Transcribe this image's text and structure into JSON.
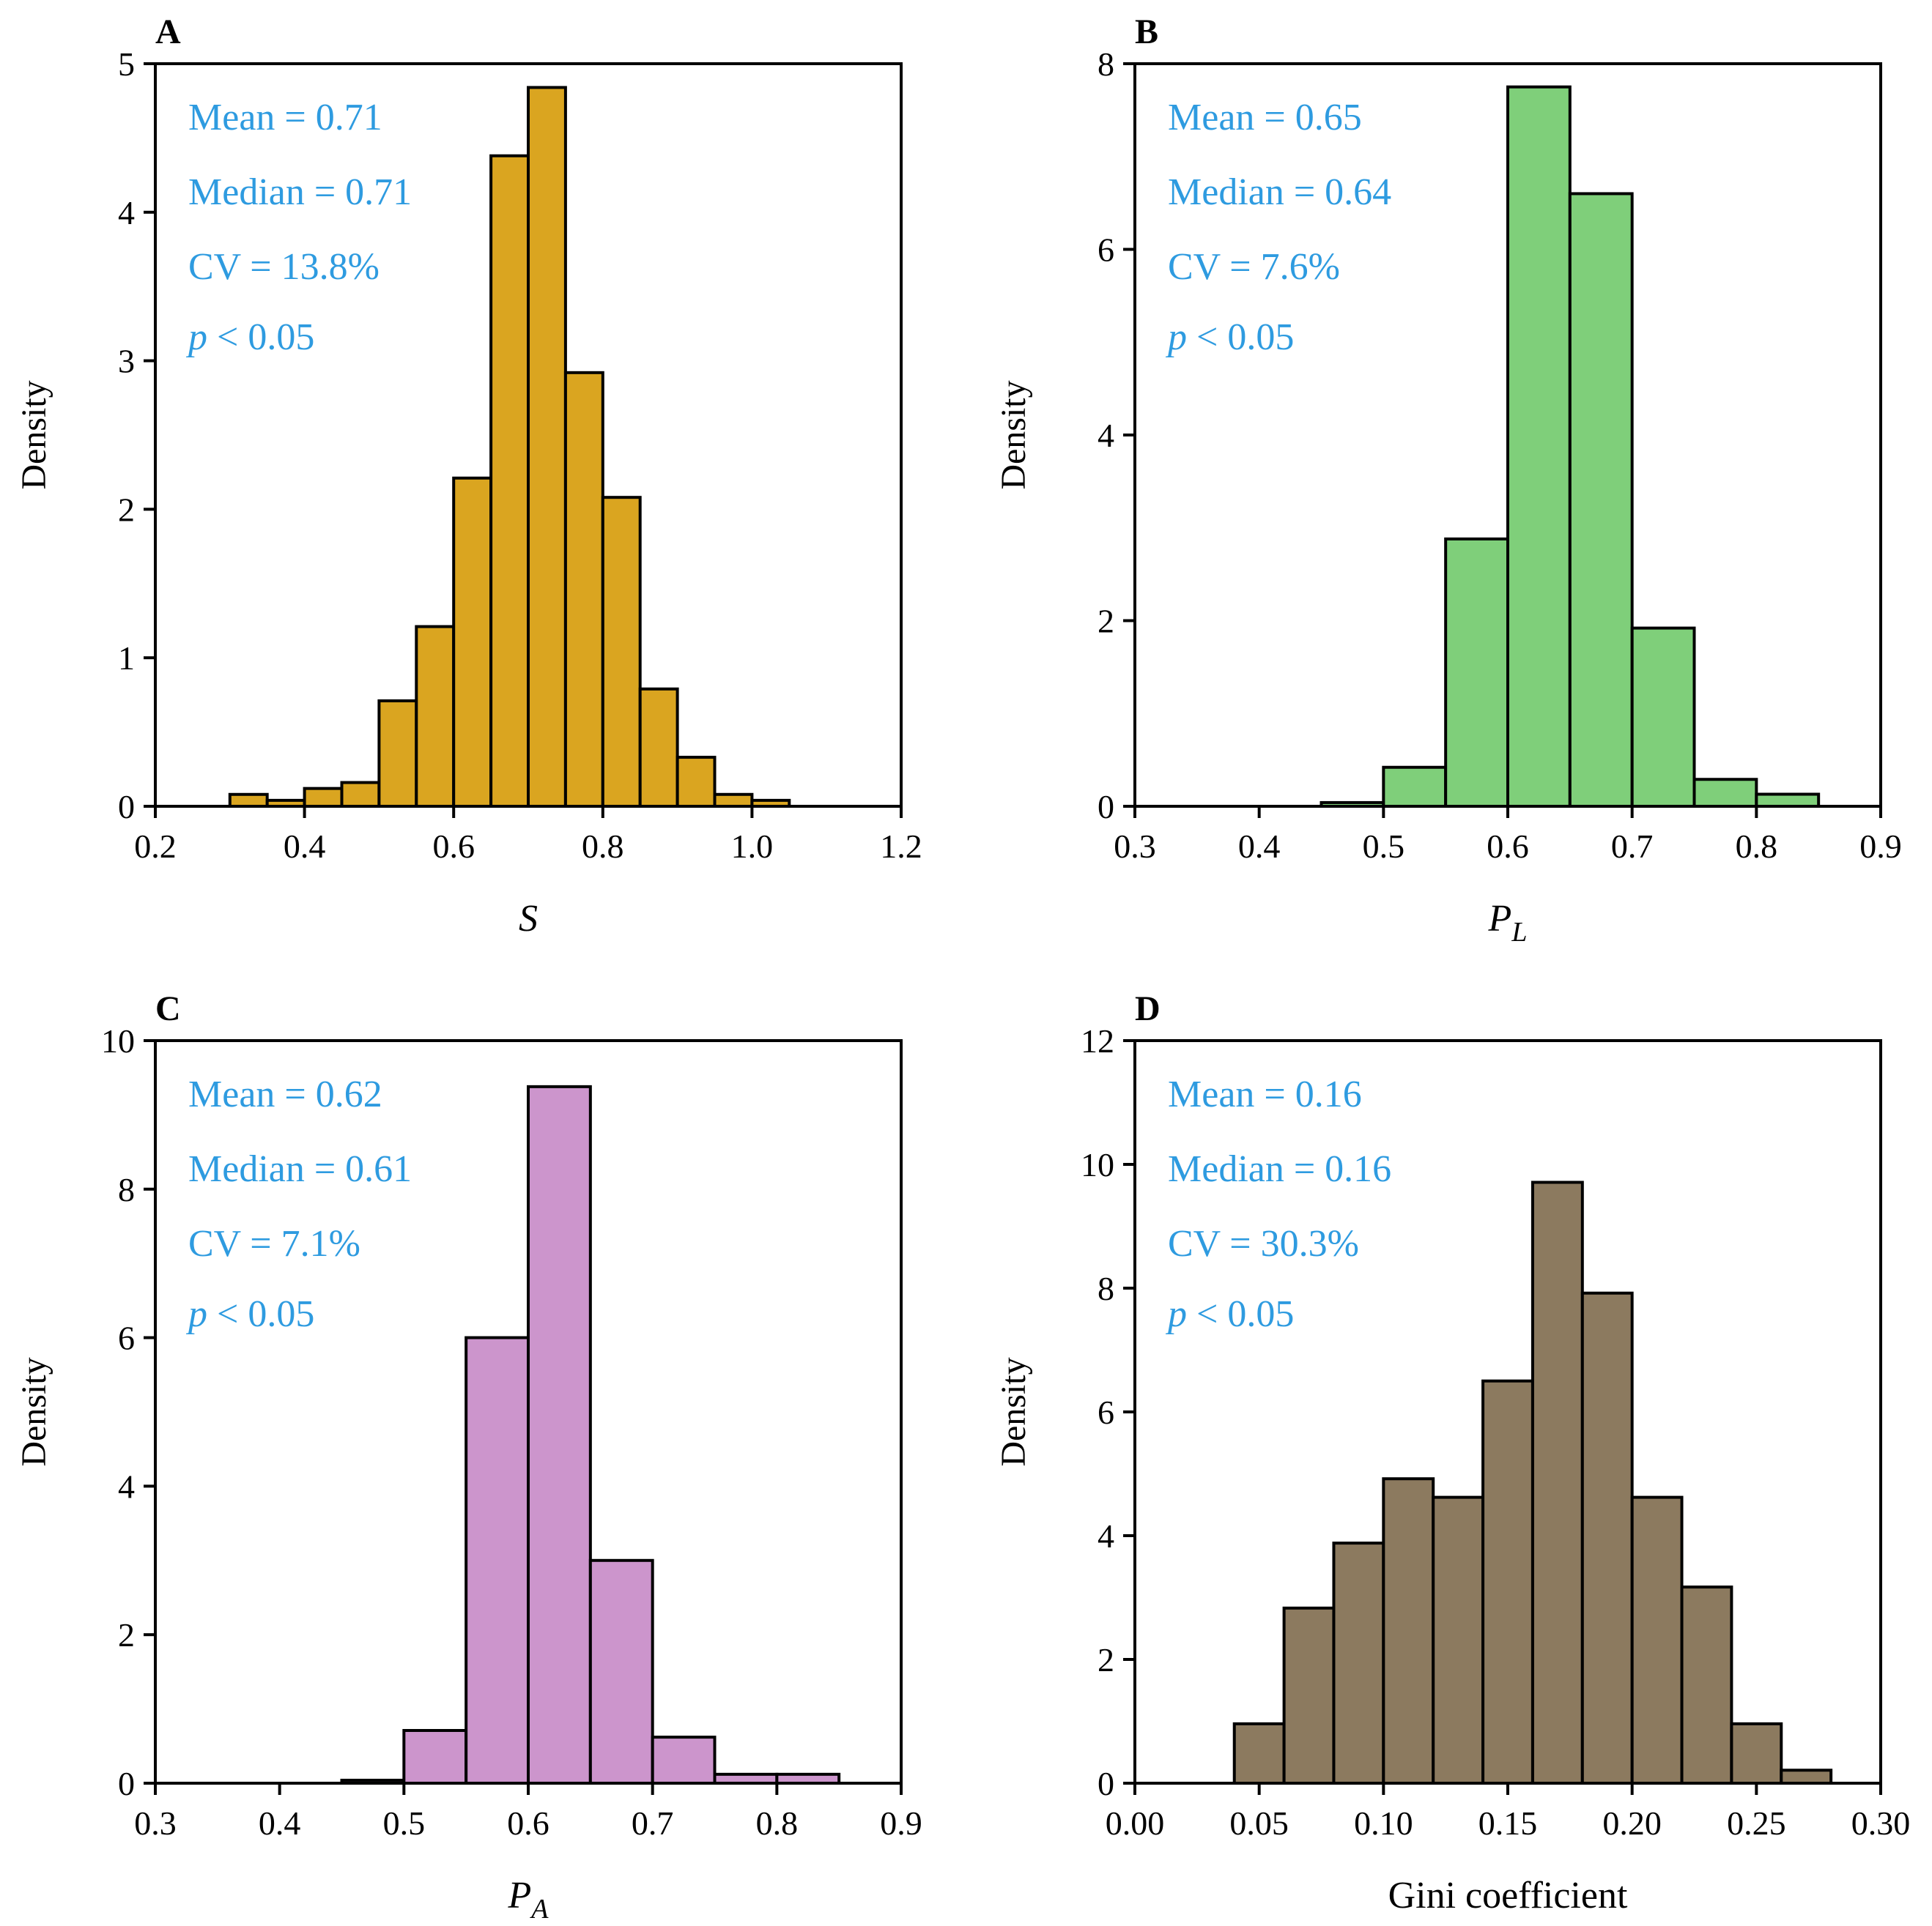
{
  "stat_color": "#2e9be0",
  "chart_data": [
    {
      "type": "histogram",
      "panel": "A",
      "xlabel": "S",
      "ylabel": "Density",
      "xlim": [
        0.2,
        1.2
      ],
      "ylim": [
        0,
        5
      ],
      "xticks": [
        "0.2",
        "0.4",
        "0.6",
        "0.8",
        "1.0",
        "1.2"
      ],
      "yticks": [
        "0",
        "1",
        "2",
        "3",
        "4",
        "5"
      ],
      "color": "#daa520",
      "bin_width": 0.05,
      "bins": [
        {
          "x0": 0.3,
          "value": 0.08
        },
        {
          "x0": 0.35,
          "value": 0.04
        },
        {
          "x0": 0.4,
          "value": 0.12
        },
        {
          "x0": 0.45,
          "value": 0.16
        },
        {
          "x0": 0.5,
          "value": 0.71
        },
        {
          "x0": 0.55,
          "value": 1.21
        },
        {
          "x0": 0.6,
          "value": 2.21
        },
        {
          "x0": 0.65,
          "value": 4.38
        },
        {
          "x0": 0.7,
          "value": 4.84
        },
        {
          "x0": 0.75,
          "value": 2.92
        },
        {
          "x0": 0.8,
          "value": 2.08
        },
        {
          "x0": 0.85,
          "value": 0.79
        },
        {
          "x0": 0.9,
          "value": 0.33
        },
        {
          "x0": 0.95,
          "value": 0.08
        },
        {
          "x0": 1.0,
          "value": 0.04
        }
      ],
      "annotations": {
        "mean": "Mean = 0.71",
        "median": "Median = 0.71",
        "cv": "CV = 13.8%",
        "p_var": "p",
        "p_rest": " < 0.05"
      }
    },
    {
      "type": "histogram",
      "panel": "B",
      "xlabel": "P",
      "xlabel_sub": "L",
      "ylabel": "Density",
      "xlim": [
        0.3,
        0.9
      ],
      "ylim": [
        0,
        8
      ],
      "xticks": [
        "0.3",
        "0.4",
        "0.5",
        "0.6",
        "0.7",
        "0.8",
        "0.9"
      ],
      "yticks": [
        "0",
        "2",
        "4",
        "6",
        "8"
      ],
      "color": "#7fcf7a",
      "bin_width": 0.05,
      "bins": [
        {
          "x0": 0.45,
          "value": 0.04
        },
        {
          "x0": 0.5,
          "value": 0.42
        },
        {
          "x0": 0.55,
          "value": 2.88
        },
        {
          "x0": 0.6,
          "value": 7.75
        },
        {
          "x0": 0.65,
          "value": 6.6
        },
        {
          "x0": 0.7,
          "value": 1.92
        },
        {
          "x0": 0.75,
          "value": 0.29
        },
        {
          "x0": 0.8,
          "value": 0.13
        }
      ],
      "annotations": {
        "mean": "Mean = 0.65",
        "median": "Median = 0.64",
        "cv": "CV = 7.6%",
        "p_var": "p",
        "p_rest": " < 0.05"
      }
    },
    {
      "type": "histogram",
      "panel": "C",
      "xlabel": "P",
      "xlabel_sub": "A",
      "ylabel": "Density",
      "xlim": [
        0.3,
        0.9
      ],
      "ylim": [
        0,
        10
      ],
      "xticks": [
        "0.3",
        "0.4",
        "0.5",
        "0.6",
        "0.7",
        "0.8",
        "0.9"
      ],
      "yticks": [
        "0",
        "2",
        "4",
        "6",
        "8",
        "10"
      ],
      "color": "#cc95cc",
      "bin_width": 0.05,
      "bins": [
        {
          "x0": 0.45,
          "value": 0.04
        },
        {
          "x0": 0.5,
          "value": 0.71
        },
        {
          "x0": 0.55,
          "value": 6.0
        },
        {
          "x0": 0.6,
          "value": 9.38
        },
        {
          "x0": 0.65,
          "value": 3.0
        },
        {
          "x0": 0.7,
          "value": 0.62
        },
        {
          "x0": 0.75,
          "value": 0.12
        },
        {
          "x0": 0.8,
          "value": 0.12
        }
      ],
      "annotations": {
        "mean": "Mean = 0.62",
        "median": "Median = 0.61",
        "cv": "CV = 7.1%",
        "p_var": "p",
        "p_rest": " < 0.05"
      }
    },
    {
      "type": "histogram",
      "panel": "D",
      "xlabel": "Gini coefficient",
      "ylabel": "Density",
      "xlim": [
        0.0,
        0.3
      ],
      "ylim": [
        0,
        12
      ],
      "xticks": [
        "0.00",
        "0.05",
        "0.10",
        "0.15",
        "0.20",
        "0.25",
        "0.30"
      ],
      "yticks": [
        "0",
        "2",
        "4",
        "6",
        "8",
        "10",
        "12"
      ],
      "color": "#8c7a5f",
      "bin_width": 0.02,
      "bins": [
        {
          "x0": 0.04,
          "value": 0.96
        },
        {
          "x0": 0.06,
          "value": 2.83
        },
        {
          "x0": 0.08,
          "value": 3.88
        },
        {
          "x0": 0.1,
          "value": 4.92
        },
        {
          "x0": 0.12,
          "value": 4.62
        },
        {
          "x0": 0.14,
          "value": 6.5
        },
        {
          "x0": 0.16,
          "value": 9.71
        },
        {
          "x0": 0.18,
          "value": 7.92
        },
        {
          "x0": 0.2,
          "value": 4.62
        },
        {
          "x0": 0.22,
          "value": 3.17
        },
        {
          "x0": 0.24,
          "value": 0.96
        },
        {
          "x0": 0.26,
          "value": 0.21
        }
      ],
      "annotations": {
        "mean": "Mean = 0.16",
        "median": "Median = 0.16",
        "cv": "CV = 30.3%",
        "p_var": "p",
        "p_rest": " < 0.05"
      }
    }
  ]
}
